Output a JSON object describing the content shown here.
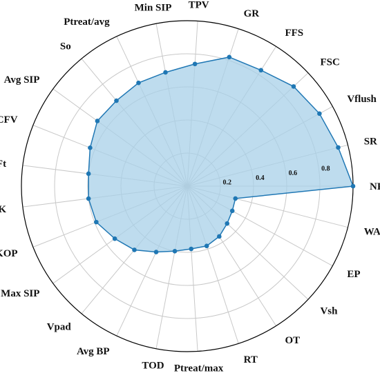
{
  "chart_data": {
    "type": "radar",
    "title": "",
    "axes": [
      "NPT",
      "SR",
      "Vflush",
      "FSC",
      "FFS",
      "GR",
      "TPV",
      "Min SIP",
      "Ptreat/avg",
      "So",
      "Avg SIP",
      "TCFV",
      "Ft",
      "K",
      "KOP",
      "Max SIP",
      "Vpad",
      "Avg BP",
      "TOD",
      "Ptreat/max",
      "RT",
      "OT",
      "Vsh",
      "EP",
      "WAZ"
    ],
    "series": [
      {
        "values": [
          1.0,
          0.94,
          0.91,
          0.88,
          0.83,
          0.82,
          0.74,
          0.7,
          0.69,
          0.67,
          0.67,
          0.63,
          0.6,
          0.6,
          0.59,
          0.54,
          0.5,
          0.44,
          0.4,
          0.38,
          0.38,
          0.36,
          0.33,
          0.31,
          0.3
        ],
        "color": "#1f77b4",
        "fill": "#a8d0e8"
      }
    ],
    "rlim": [
      0,
      1
    ],
    "ticks": [
      "0.2",
      "0.4",
      "0.6",
      "0.8"
    ],
    "grid": true
  }
}
